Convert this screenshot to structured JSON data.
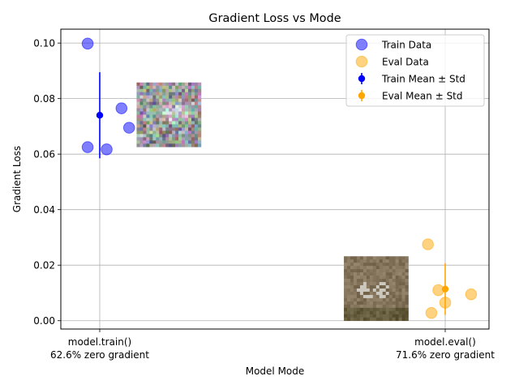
{
  "chart_data": {
    "type": "scatter",
    "title": "Gradient Loss vs Mode",
    "xlabel": "Model Mode",
    "ylabel": "Gradient Loss",
    "ylim": [
      -0.003,
      0.105
    ],
    "y_ticks": [
      "0.00",
      "0.02",
      "0.04",
      "0.06",
      "0.08",
      "0.10"
    ],
    "y_tick_values": [
      0.0,
      0.02,
      0.04,
      0.06,
      0.08,
      0.1
    ],
    "categories": [
      {
        "label": "model.train()",
        "sublabel": "62.6% zero gradient",
        "x": 0
      },
      {
        "label": "model.eval()",
        "sublabel": "71.6% zero gradient",
        "x": 1
      }
    ],
    "grid": true,
    "legend_position": "top-right",
    "series": [
      {
        "name": "Train Data",
        "color": "#0000ff",
        "points": [
          [
            -0.035,
            0.0625
          ],
          [
            -0.035,
            0.0998
          ],
          [
            0.02,
            0.0617
          ],
          [
            0.063,
            0.0765
          ],
          [
            0.085,
            0.0695
          ]
        ]
      },
      {
        "name": "Eval Data",
        "color": "#ffa500",
        "points": [
          [
            0.95,
            0.0275
          ],
          [
            0.96,
            0.0028
          ],
          [
            0.98,
            0.011
          ],
          [
            1.0,
            0.0065
          ],
          [
            1.075,
            0.0095
          ]
        ]
      }
    ],
    "summary": [
      {
        "name": "Train Mean ± Std",
        "color": "#0000ff",
        "x": 0,
        "mean": 0.074,
        "std": 0.0155
      },
      {
        "name": "Eval Mean ± Std",
        "color": "#ffa500",
        "x": 1,
        "mean": 0.0114,
        "std": 0.0093
      }
    ],
    "thumbnails": [
      {
        "name": "train-sample-thumbnail",
        "x_center": 0.2,
        "y_top": 0.0858,
        "y_bottom": 0.0626
      },
      {
        "name": "eval-sample-thumbnail",
        "x_center": 0.8,
        "y_top": 0.0232,
        "y_bottom": 0.0
      }
    ]
  }
}
